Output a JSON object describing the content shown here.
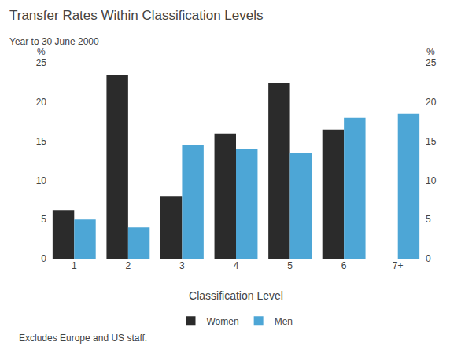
{
  "chart_data": {
    "type": "bar",
    "title": "Transfer Rates Within Classification Levels",
    "subtitle": "Year to 30 June 2000",
    "footnote": "Excludes Europe and US staff.",
    "xlabel": "Classification Level",
    "ylabel": "%",
    "y2label": "%",
    "categories": [
      "1",
      "2",
      "3",
      "4",
      "5",
      "6",
      "7+"
    ],
    "series": [
      {
        "name": "Women",
        "color": "#2b2b2b",
        "values": [
          6.2,
          23.5,
          8.0,
          16.0,
          22.5,
          16.5,
          0
        ]
      },
      {
        "name": "Men",
        "color": "#4da6d6",
        "values": [
          5.0,
          4.0,
          14.5,
          14.0,
          13.5,
          18.0,
          18.5
        ]
      }
    ],
    "ylim": [
      0,
      25
    ],
    "yticks": [
      0,
      5,
      10,
      15,
      20,
      25
    ],
    "y2lim": [
      0,
      25
    ],
    "y2ticks": [
      0,
      5,
      10,
      15,
      20,
      25
    ],
    "grid": false,
    "legend": "bottom"
  }
}
